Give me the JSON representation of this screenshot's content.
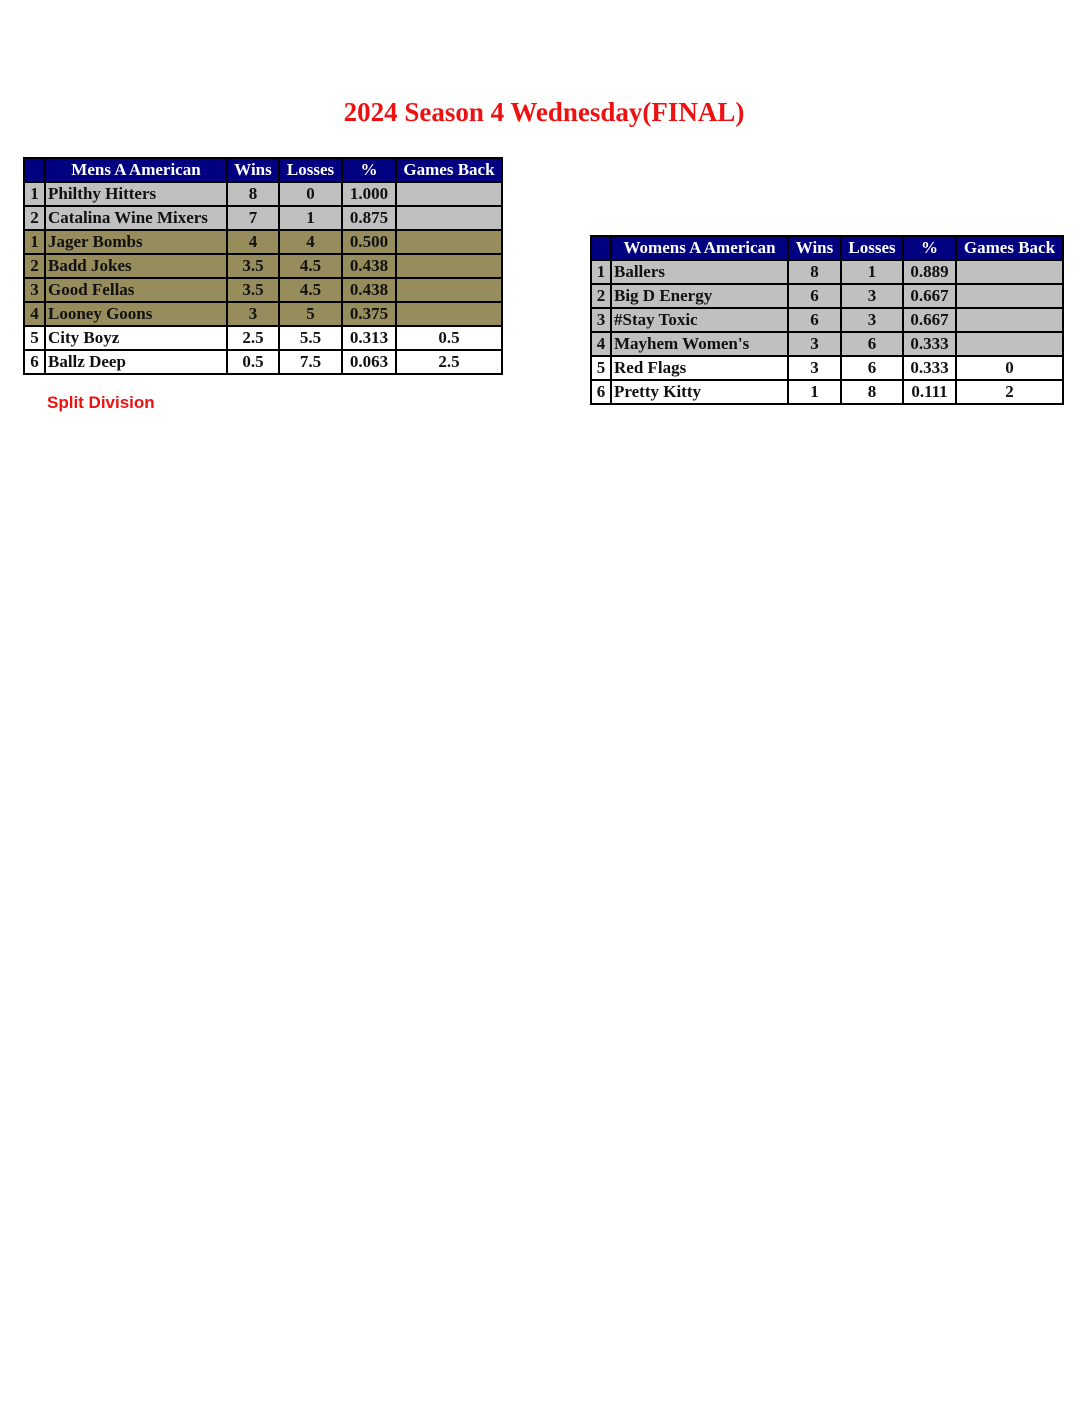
{
  "title": "2024 Season 4 Wednesday(FINAL)",
  "colors": {
    "title": "#ee1111",
    "header": "#000080",
    "gray_row": "#c0c0c0",
    "olive_row": "#978c5b"
  },
  "mens": {
    "headers": [
      "",
      "Mens A American",
      "Wins",
      "Losses",
      "%",
      "Games Back"
    ],
    "rows": [
      {
        "rank": "1",
        "team": "Philthy Hitters",
        "wins": "8",
        "losses": "0",
        "pct": "1.000",
        "gb": "",
        "style": "gray"
      },
      {
        "rank": "2",
        "team": "Catalina Wine Mixers",
        "wins": "7",
        "losses": "1",
        "pct": "0.875",
        "gb": "",
        "style": "gray"
      },
      {
        "rank": "1",
        "team": "Jager Bombs",
        "wins": "4",
        "losses": "4",
        "pct": "0.500",
        "gb": "",
        "style": "olive"
      },
      {
        "rank": "2",
        "team": "Badd Jokes",
        "wins": "3.5",
        "losses": "4.5",
        "pct": "0.438",
        "gb": "",
        "style": "olive"
      },
      {
        "rank": "3",
        "team": "Good Fellas",
        "wins": "3.5",
        "losses": "4.5",
        "pct": "0.438",
        "gb": "",
        "style": "olive"
      },
      {
        "rank": "4",
        "team": "Looney Goons",
        "wins": "3",
        "losses": "5",
        "pct": "0.375",
        "gb": "",
        "style": "olive"
      },
      {
        "rank": "5",
        "team": "City Boyz",
        "wins": "2.5",
        "losses": "5.5",
        "pct": "0.313",
        "gb": "0.5",
        "style": "white"
      },
      {
        "rank": "6",
        "team": "Ballz Deep",
        "wins": "0.5",
        "losses": "7.5",
        "pct": "0.063",
        "gb": "2.5",
        "style": "white"
      }
    ],
    "note": "Split Division"
  },
  "womens": {
    "headers": [
      "",
      "Womens A American",
      "Wins",
      "Losses",
      "%",
      "Games Back"
    ],
    "rows": [
      {
        "rank": "1",
        "team": "Ballers",
        "wins": "8",
        "losses": "1",
        "pct": "0.889",
        "gb": "",
        "style": "gray"
      },
      {
        "rank": "2",
        "team": "Big D Energy",
        "wins": "6",
        "losses": "3",
        "pct": "0.667",
        "gb": "",
        "style": "gray"
      },
      {
        "rank": "3",
        "team": "#Stay Toxic",
        "wins": "6",
        "losses": "3",
        "pct": "0.667",
        "gb": "",
        "style": "gray"
      },
      {
        "rank": "4",
        "team": "Mayhem Women's",
        "wins": "3",
        "losses": "6",
        "pct": "0.333",
        "gb": "",
        "style": "gray"
      },
      {
        "rank": "5",
        "team": "Red Flags",
        "wins": "3",
        "losses": "6",
        "pct": "0.333",
        "gb": "0",
        "style": "white"
      },
      {
        "rank": "6",
        "team": "Pretty Kitty",
        "wins": "1",
        "losses": "8",
        "pct": "0.111",
        "gb": "2",
        "style": "white"
      }
    ]
  }
}
